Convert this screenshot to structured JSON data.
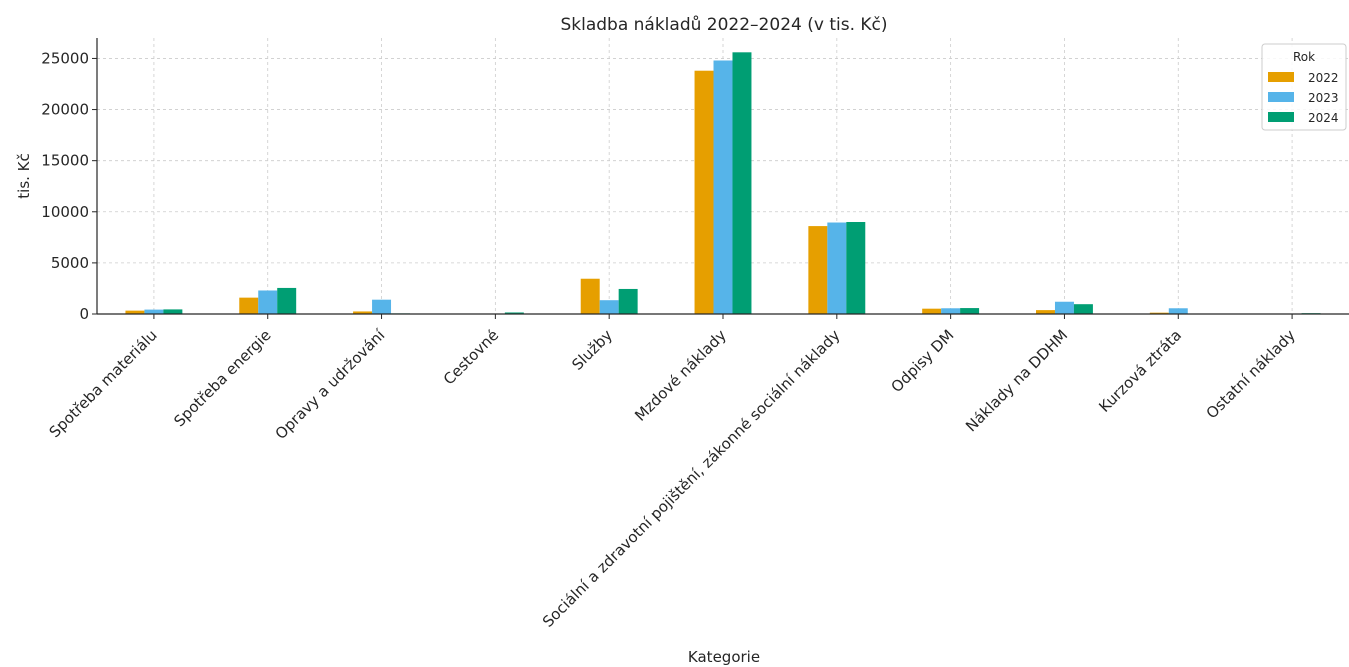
{
  "chart_data": {
    "type": "bar",
    "title": "Skladba nákladů 2022–2024 (v tis. Kč)",
    "xlabel": "Kategorie",
    "ylabel": "tis. Kč",
    "ylim": [
      0,
      27000
    ],
    "yticks": [
      0,
      5000,
      10000,
      15000,
      20000,
      25000
    ],
    "grid": true,
    "legend": {
      "title": "Rok",
      "placement": "top-right"
    },
    "categories": [
      "Spotřeba materiálu",
      "Spotřeba energie",
      "Opravy a udržování",
      "Cestovné",
      "Služby",
      "Mzdové náklady",
      "Sociální a zdravotní pojištění, zákonné sociální náklady",
      "Odpisy DM",
      "Náklady na DDHM",
      "Kurzová ztráta",
      "Ostatní náklady"
    ],
    "series": [
      {
        "name": "2022",
        "color": "#E69F00",
        "values": [
          330,
          1600,
          250,
          10,
          3450,
          23800,
          8600,
          520,
          380,
          130,
          10
        ]
      },
      {
        "name": "2023",
        "color": "#56B4E9",
        "values": [
          430,
          2300,
          1400,
          40,
          1350,
          24800,
          8950,
          560,
          1200,
          560,
          20
        ]
      },
      {
        "name": "2024",
        "color": "#009E73",
        "values": [
          450,
          2550,
          60,
          150,
          2450,
          25600,
          9000,
          580,
          960,
          20,
          80
        ]
      }
    ]
  }
}
